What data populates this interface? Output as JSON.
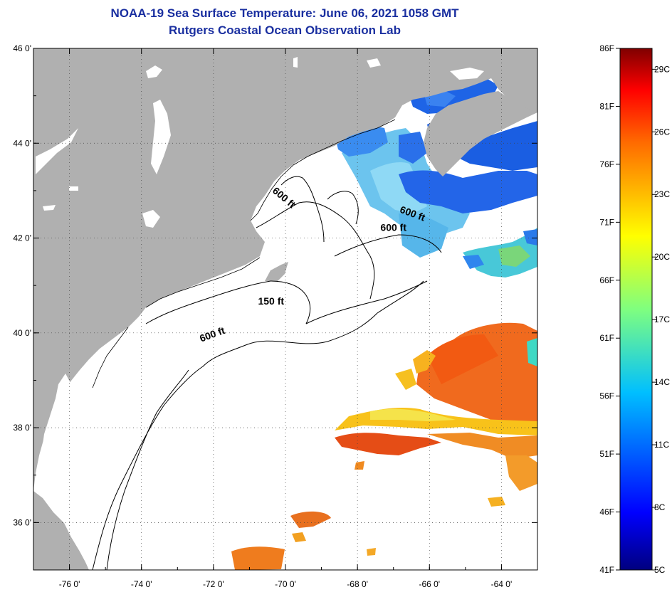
{
  "title": "NOAA-19 Sea Surface Temperature:  June 06, 2021 1058 GMT",
  "subtitle": "Rutgers Coastal Ocean Observation Lab",
  "colors": {
    "land": "#b0b0b0",
    "water_nodata": "#ffffff",
    "title": "#1a2fa0"
  },
  "map": {
    "lon_range": [
      -77,
      -63
    ],
    "lat_range": [
      35,
      46
    ],
    "lon_ticks": [
      {
        "value": -76,
        "label": "-76 0'"
      },
      {
        "value": -74,
        "label": "-74 0'"
      },
      {
        "value": -72,
        "label": "-72 0'"
      },
      {
        "value": -70,
        "label": "-70 0'"
      },
      {
        "value": -68,
        "label": "-68 0'"
      },
      {
        "value": -66,
        "label": "-66 0'"
      },
      {
        "value": -64,
        "label": "-64 0'"
      }
    ],
    "lat_ticks": [
      {
        "value": 46,
        "label": "46 0'"
      },
      {
        "value": 44,
        "label": "44 0'"
      },
      {
        "value": 42,
        "label": "42 0'"
      },
      {
        "value": 40,
        "label": "40 0'"
      },
      {
        "value": 38,
        "label": "38 0'"
      },
      {
        "value": 36,
        "label": "36 0'"
      }
    ],
    "contour_labels": [
      {
        "text": "600 ft",
        "lon": -72.0,
        "lat": 39.9,
        "rotate": -20
      },
      {
        "text": "150 ft",
        "lon": -70.4,
        "lat": 40.6,
        "rotate": 0
      },
      {
        "text": "600 ft",
        "lon": -70.1,
        "lat": 42.8,
        "rotate": 40
      },
      {
        "text": "600 ft",
        "lon": -66.5,
        "lat": 42.45,
        "rotate": 20
      },
      {
        "text": "600 ft",
        "lon": -67.0,
        "lat": 42.15,
        "rotate": 0
      }
    ]
  },
  "colorbar": {
    "f_labels": [
      "86F",
      "81F",
      "76F",
      "71F",
      "66F",
      "61F",
      "56F",
      "51F",
      "46F",
      "41F"
    ],
    "c_labels": [
      "29C",
      "26C",
      "23C",
      "20C",
      "17C",
      "14C",
      "11C",
      "8C",
      "5C"
    ],
    "f_range": [
      41,
      86
    ],
    "c_values": [
      29,
      26,
      23,
      20,
      17,
      14,
      11,
      8,
      5
    ]
  }
}
